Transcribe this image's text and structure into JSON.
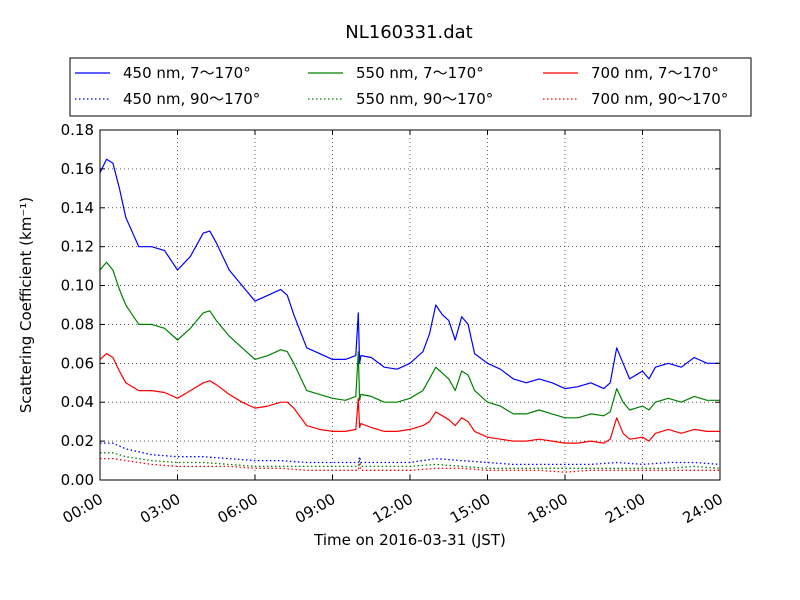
{
  "chart_data": {
    "type": "line",
    "title": "NL160331.dat",
    "xlabel": "Time on 2016-03-31 (JST)",
    "ylabel": "Scattering Coefficient (km⁻¹)",
    "xlim": [
      0,
      24
    ],
    "ylim": [
      0.0,
      0.18
    ],
    "grid": true,
    "legend_position": "top",
    "x_tick_labels": [
      "00:00",
      "03:00",
      "06:00",
      "09:00",
      "12:00",
      "15:00",
      "18:00",
      "21:00",
      "24:00"
    ],
    "y_tick_labels": [
      "0.00",
      "0.02",
      "0.04",
      "0.06",
      "0.08",
      "0.10",
      "0.12",
      "0.14",
      "0.16",
      "0.18"
    ],
    "x_unit": "hours since 00:00",
    "series": [
      {
        "name": "450 nm, 7～170°",
        "color": "#0000ff",
        "style": "solid",
        "x": [
          0,
          0.25,
          0.5,
          0.75,
          1,
          1.5,
          2,
          2.5,
          3,
          3.5,
          4,
          4.25,
          4.5,
          5,
          5.5,
          6,
          6.5,
          7,
          7.25,
          7.5,
          8,
          8.5,
          9,
          9.5,
          9.9,
          10,
          10.05,
          10.1,
          10.5,
          11,
          11.5,
          12,
          12.5,
          12.75,
          13,
          13.25,
          13.5,
          13.75,
          14,
          14.25,
          14.5,
          15,
          15.5,
          16,
          16.5,
          17,
          17.5,
          18,
          18.5,
          19,
          19.5,
          19.75,
          20,
          20.25,
          20.5,
          21,
          21.25,
          21.5,
          22,
          22.5,
          23,
          23.5,
          24
        ],
        "values": [
          0.158,
          0.165,
          0.163,
          0.15,
          0.135,
          0.12,
          0.12,
          0.118,
          0.108,
          0.115,
          0.127,
          0.128,
          0.122,
          0.108,
          0.1,
          0.092,
          0.095,
          0.098,
          0.095,
          0.085,
          0.068,
          0.065,
          0.062,
          0.062,
          0.064,
          0.086,
          0.06,
          0.064,
          0.063,
          0.058,
          0.057,
          0.06,
          0.066,
          0.075,
          0.09,
          0.085,
          0.082,
          0.072,
          0.084,
          0.08,
          0.065,
          0.06,
          0.057,
          0.052,
          0.05,
          0.052,
          0.05,
          0.047,
          0.048,
          0.05,
          0.047,
          0.05,
          0.068,
          0.06,
          0.052,
          0.056,
          0.052,
          0.058,
          0.06,
          0.058,
          0.063,
          0.06,
          0.06
        ]
      },
      {
        "name": "550 nm, 7～170°",
        "color": "#008000",
        "style": "solid",
        "x": [
          0,
          0.25,
          0.5,
          0.75,
          1,
          1.5,
          2,
          2.5,
          3,
          3.5,
          4,
          4.25,
          4.5,
          5,
          5.5,
          6,
          6.5,
          7,
          7.25,
          7.5,
          8,
          8.5,
          9,
          9.5,
          9.9,
          10,
          10.05,
          10.1,
          10.5,
          11,
          11.5,
          12,
          12.5,
          12.75,
          13,
          13.25,
          13.5,
          13.75,
          14,
          14.25,
          14.5,
          15,
          15.5,
          16,
          16.5,
          17,
          17.5,
          18,
          18.5,
          19,
          19.5,
          19.75,
          20,
          20.25,
          20.5,
          21,
          21.25,
          21.5,
          22,
          22.5,
          23,
          23.5,
          24
        ],
        "values": [
          0.108,
          0.112,
          0.108,
          0.098,
          0.09,
          0.08,
          0.08,
          0.078,
          0.072,
          0.078,
          0.086,
          0.087,
          0.082,
          0.074,
          0.068,
          0.062,
          0.064,
          0.067,
          0.066,
          0.06,
          0.046,
          0.044,
          0.042,
          0.041,
          0.043,
          0.066,
          0.041,
          0.044,
          0.043,
          0.04,
          0.04,
          0.042,
          0.046,
          0.052,
          0.058,
          0.055,
          0.052,
          0.046,
          0.056,
          0.054,
          0.046,
          0.04,
          0.038,
          0.034,
          0.034,
          0.036,
          0.034,
          0.032,
          0.032,
          0.034,
          0.033,
          0.035,
          0.047,
          0.04,
          0.036,
          0.038,
          0.036,
          0.04,
          0.042,
          0.04,
          0.043,
          0.041,
          0.041
        ]
      },
      {
        "name": "700 nm, 7～170°",
        "color": "#ff0000",
        "style": "solid",
        "x": [
          0,
          0.25,
          0.5,
          0.75,
          1,
          1.5,
          2,
          2.5,
          3,
          3.5,
          4,
          4.25,
          4.5,
          5,
          5.5,
          6,
          6.5,
          7,
          7.25,
          7.5,
          8,
          8.5,
          9,
          9.5,
          9.9,
          10,
          10.05,
          10.1,
          10.5,
          11,
          11.5,
          12,
          12.5,
          12.75,
          13,
          13.25,
          13.5,
          13.75,
          14,
          14.25,
          14.5,
          15,
          15.5,
          16,
          16.5,
          17,
          17.5,
          18,
          18.5,
          19,
          19.5,
          19.75,
          20,
          20.25,
          20.5,
          21,
          21.25,
          21.5,
          22,
          22.5,
          23,
          23.5,
          24
        ],
        "values": [
          0.062,
          0.065,
          0.063,
          0.056,
          0.05,
          0.046,
          0.046,
          0.045,
          0.042,
          0.046,
          0.05,
          0.051,
          0.049,
          0.044,
          0.04,
          0.037,
          0.038,
          0.04,
          0.04,
          0.037,
          0.028,
          0.026,
          0.025,
          0.025,
          0.026,
          0.042,
          0.027,
          0.029,
          0.027,
          0.025,
          0.025,
          0.026,
          0.028,
          0.03,
          0.035,
          0.033,
          0.031,
          0.028,
          0.032,
          0.03,
          0.025,
          0.022,
          0.021,
          0.02,
          0.02,
          0.021,
          0.02,
          0.019,
          0.019,
          0.02,
          0.019,
          0.021,
          0.032,
          0.024,
          0.021,
          0.022,
          0.02,
          0.024,
          0.026,
          0.024,
          0.026,
          0.025,
          0.025
        ]
      },
      {
        "name": "450 nm, 90～170°",
        "color": "#0000ff",
        "style": "dotted",
        "x": [
          0,
          0.5,
          1,
          2,
          3,
          4,
          5,
          6,
          7,
          8,
          9,
          10,
          10.05,
          10.1,
          11,
          12,
          13,
          14,
          15,
          16,
          17,
          18,
          19,
          20,
          21,
          22,
          23,
          24
        ],
        "values": [
          0.019,
          0.019,
          0.016,
          0.013,
          0.012,
          0.012,
          0.011,
          0.01,
          0.01,
          0.009,
          0.009,
          0.009,
          0.012,
          0.009,
          0.009,
          0.009,
          0.011,
          0.01,
          0.009,
          0.008,
          0.008,
          0.008,
          0.008,
          0.009,
          0.008,
          0.009,
          0.009,
          0.008
        ]
      },
      {
        "name": "550 nm, 90～170°",
        "color": "#008000",
        "style": "dotted",
        "x": [
          0,
          0.5,
          1,
          2,
          3,
          4,
          5,
          6,
          7,
          8,
          9,
          10,
          10.05,
          10.1,
          11,
          12,
          13,
          14,
          15,
          16,
          17,
          18,
          19,
          20,
          21,
          22,
          23,
          24
        ],
        "values": [
          0.014,
          0.014,
          0.012,
          0.01,
          0.009,
          0.009,
          0.008,
          0.007,
          0.007,
          0.007,
          0.007,
          0.007,
          0.01,
          0.007,
          0.007,
          0.007,
          0.008,
          0.007,
          0.006,
          0.006,
          0.006,
          0.006,
          0.006,
          0.006,
          0.006,
          0.006,
          0.007,
          0.006
        ]
      },
      {
        "name": "700 nm, 90～170°",
        "color": "#ff0000",
        "style": "dotted",
        "x": [
          0,
          0.5,
          1,
          2,
          3,
          4,
          5,
          6,
          7,
          8,
          9,
          10,
          10.05,
          10.1,
          11,
          12,
          13,
          14,
          15,
          16,
          17,
          18,
          19,
          20,
          21,
          22,
          23,
          24
        ],
        "values": [
          0.011,
          0.011,
          0.01,
          0.008,
          0.007,
          0.007,
          0.007,
          0.006,
          0.006,
          0.005,
          0.005,
          0.005,
          0.008,
          0.005,
          0.005,
          0.005,
          0.006,
          0.006,
          0.005,
          0.005,
          0.005,
          0.004,
          0.005,
          0.005,
          0.005,
          0.005,
          0.005,
          0.005
        ]
      }
    ]
  }
}
